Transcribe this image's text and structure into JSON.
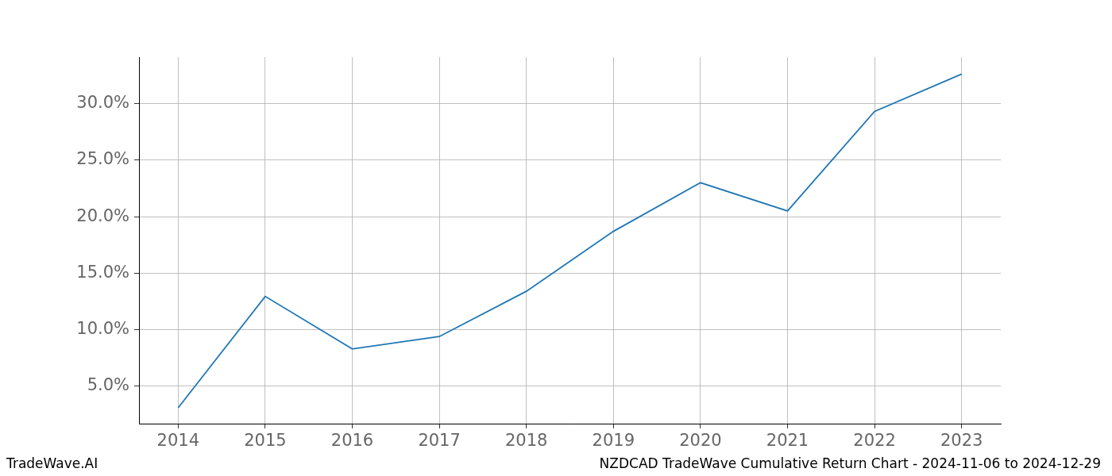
{
  "chart_data": {
    "type": "line",
    "annotations": [
      "TradeWave.AI",
      "NZDCAD TradeWave Cumulative Return Chart - 2024-11-06 to 2024-12-29"
    ],
    "x": [
      2014,
      2015,
      2016,
      2017,
      2018,
      2019,
      2020,
      2021,
      2022,
      2023
    ],
    "values": [
      3.1,
      12.95,
      8.3,
      9.4,
      13.4,
      18.7,
      23.0,
      20.5,
      29.3,
      32.6
    ],
    "color": "#1f77b4",
    "xlim": [
      2013.55,
      2023.45
    ],
    "xticks": [
      2014,
      2015,
      2016,
      2017,
      2018,
      2019,
      2020,
      2021,
      2022,
      2023
    ],
    "ylim": [
      1.7,
      34.1
    ],
    "yticks": [
      {
        "value": 5,
        "label": "5.0%"
      },
      {
        "value": 10,
        "label": "10.0%"
      },
      {
        "value": 15,
        "label": "15.0%"
      },
      {
        "value": 20,
        "label": "20.0%"
      },
      {
        "value": 25,
        "label": "25.0%"
      },
      {
        "value": 30,
        "label": "30.0%"
      }
    ],
    "grid": true
  }
}
